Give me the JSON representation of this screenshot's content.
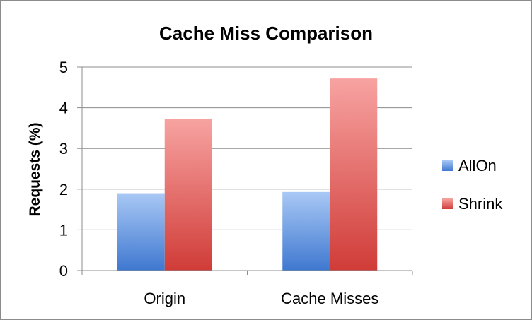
{
  "chart_data": {
    "type": "bar",
    "title": "Cache Miss Comparison",
    "xlabel": "",
    "ylabel": "Requests (%)",
    "categories": [
      "Origin",
      "Cache Misses"
    ],
    "series": [
      {
        "name": "AllOn",
        "values": [
          1.9,
          1.93
        ],
        "color": "#4a7fd1"
      },
      {
        "name": "Shrink",
        "values": [
          3.73,
          4.72
        ],
        "color": "#d94845"
      }
    ],
    "ylim": [
      0,
      5
    ],
    "yticks": [
      "0",
      "1",
      "2",
      "3",
      "4",
      "5"
    ],
    "grid": true,
    "legend": "right"
  }
}
